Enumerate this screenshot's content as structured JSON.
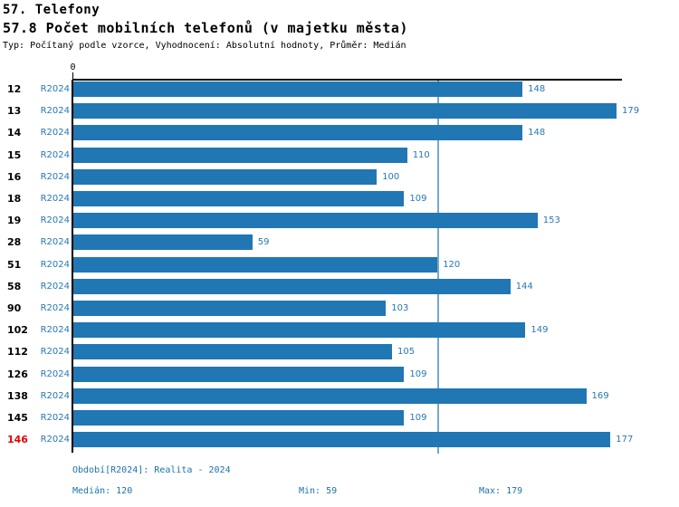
{
  "header": {
    "section_title": "57. Telefony",
    "metric_title": "57.8 Počet mobilních telefonů (v majetku města)",
    "meta_line": "Typ: Počítaný podle vzorce, Vyhodnocení: Absolutní hodnoty, Průměr: Medián"
  },
  "chart_data": {
    "type": "bar",
    "orientation": "horizontal",
    "series_label": "R2024",
    "categories": [
      "12",
      "13",
      "14",
      "15",
      "16",
      "18",
      "19",
      "28",
      "51",
      "58",
      "90",
      "102",
      "112",
      "126",
      "138",
      "145",
      "146"
    ],
    "values": [
      148,
      179,
      148,
      110,
      100,
      109,
      153,
      59,
      120,
      144,
      103,
      149,
      105,
      109,
      169,
      109,
      177
    ],
    "highlight_category": "146",
    "xlim": [
      0,
      179
    ],
    "origin_tick_label": "0",
    "reference_line": {
      "value": 120,
      "meaning": "Medián"
    },
    "grid": false,
    "colors": {
      "bar": "#2077b4",
      "value_label": "#2878b4",
      "series_label": "#2878b4",
      "category_label": "#000000",
      "highlight_category_label": "#e60000",
      "reference_line": "#74a9cf",
      "axis": "#000000"
    }
  },
  "footer": {
    "period_label": "Období[R2024]: Realita - 2024",
    "median_label": "Medián: 120",
    "min_label": "Min: 59",
    "max_label": "Max: 179",
    "text_color": "#1b74a8"
  }
}
